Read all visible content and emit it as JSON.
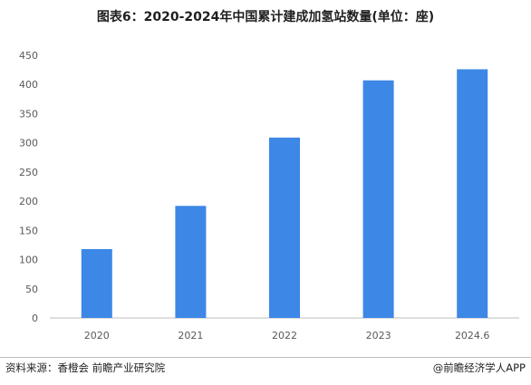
{
  "title": "图表6：2020-2024年中国累计建成加氢站数量(单位：座)",
  "footer": {
    "source": "资料来源：香橙会 前瞻产业研究院",
    "credit": "@前瞻经济学人APP"
  },
  "colors": {
    "bar": "#3d87e6",
    "axis": "#bfbfbf",
    "tick_text": "#595959"
  },
  "chart_data": {
    "type": "bar",
    "categories": [
      "2020",
      "2021",
      "2022",
      "2023",
      "2024.6"
    ],
    "values": [
      118,
      192,
      309,
      407,
      426
    ],
    "title": "图表6：2020-2024年中国累计建成加氢站数量(单位：座)",
    "xlabel": "",
    "ylabel": "",
    "ylim": [
      0,
      450
    ],
    "yticks": [
      0,
      50,
      100,
      150,
      200,
      250,
      300,
      350,
      400,
      450
    ],
    "grid": false,
    "legend": "none"
  }
}
